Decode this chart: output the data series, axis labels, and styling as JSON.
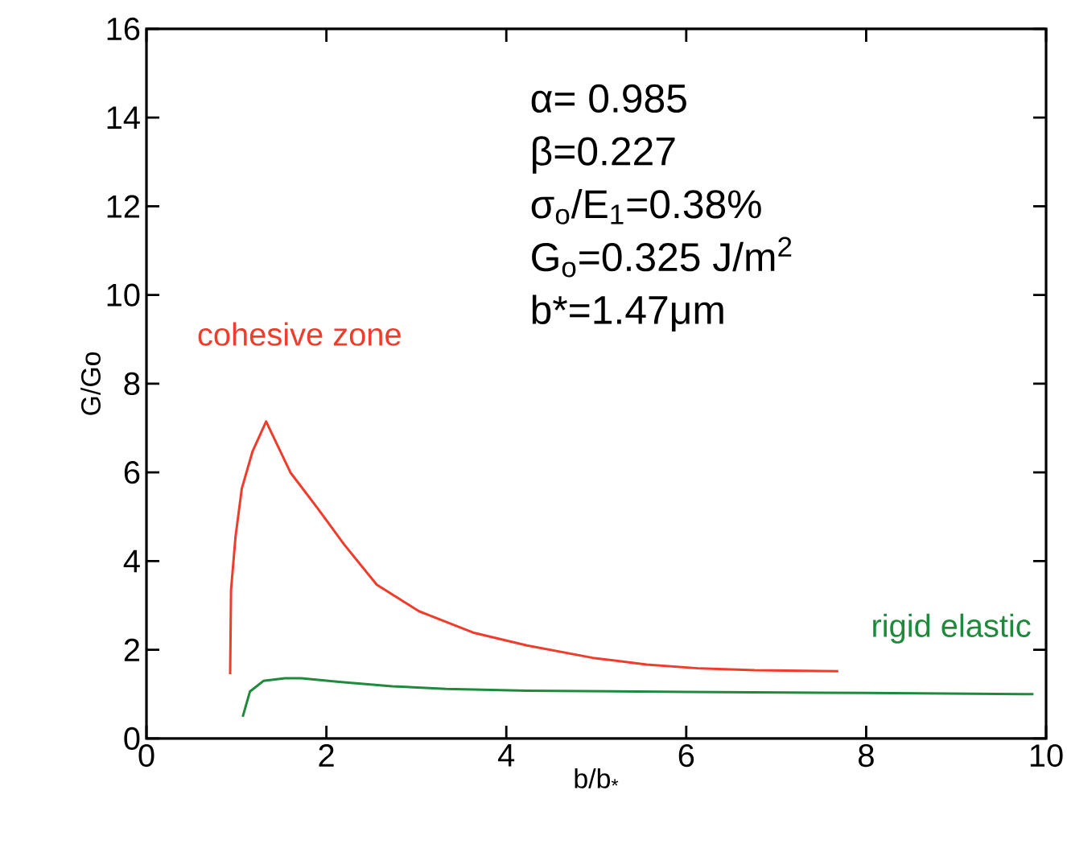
{
  "chart_data": {
    "type": "line",
    "xlabel": "b/b$_{*}$",
    "ylabel": "G/Go",
    "xlim": [
      0,
      10
    ],
    "ylim": [
      0,
      16
    ],
    "xticks": [
      0,
      2,
      4,
      6,
      8,
      10
    ],
    "yticks": [
      0,
      2,
      4,
      6,
      8,
      10,
      12,
      14,
      16
    ],
    "grid": false,
    "legend": false,
    "marker": "none",
    "line_style": "solid",
    "series": [
      {
        "name": "cohesive zone",
        "color": "#f03c2a",
        "x": [
          0.93,
          0.94,
          0.99,
          1.06,
          1.18,
          1.33,
          1.6,
          1.9,
          2.2,
          2.56,
          3.03,
          3.63,
          4.23,
          4.96,
          5.56,
          6.16,
          6.76,
          7.69
        ],
        "values": [
          1.45,
          3.35,
          4.55,
          5.64,
          6.48,
          7.15,
          6.0,
          5.2,
          4.37,
          3.47,
          2.87,
          2.39,
          2.1,
          1.82,
          1.67,
          1.58,
          1.54,
          1.52
        ]
      },
      {
        "name": "rigid elastic",
        "color": "#1f8a3c",
        "x": [
          1.07,
          1.15,
          1.3,
          1.54,
          1.72,
          2.14,
          2.73,
          3.33,
          4.23,
          6,
          8,
          9.86
        ],
        "values": [
          0.49,
          1.06,
          1.3,
          1.36,
          1.36,
          1.28,
          1.18,
          1.12,
          1.08,
          1.05,
          1.03,
          1.0
        ]
      }
    ],
    "annotations": [
      "α= 0.985",
      "β=0.227",
      "σ$_{o}$/E$_{1}$=0.38%",
      "G$_{o}$=0.325 J/m$^{2}$",
      "b*=1.47μm"
    ]
  }
}
